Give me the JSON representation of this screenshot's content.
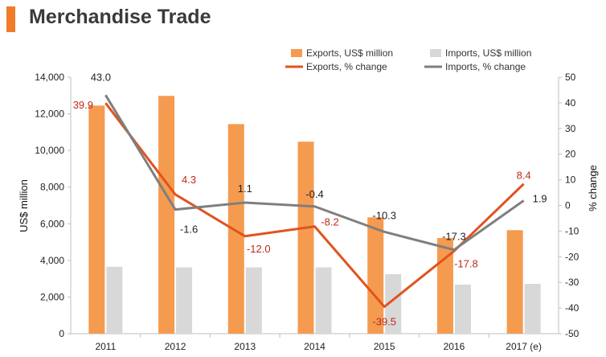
{
  "header": {
    "title": "Merchandise Trade",
    "accent_color": "#f07c2a"
  },
  "chart_data": {
    "type": "bar",
    "categories": [
      "2011",
      "2012",
      "2013",
      "2014",
      "2015",
      "2016",
      "2017 (e)"
    ],
    "left_axis": {
      "label": "US$ million",
      "min": 0,
      "max": 14000,
      "ticks": [
        "0",
        "2,000",
        "4,000",
        "6,000",
        "8,000",
        "10,000",
        "12,000",
        "14,000"
      ]
    },
    "right_axis": {
      "label": "% change",
      "min": -50,
      "max": 50,
      "ticks": [
        "-50",
        "-40",
        "-30",
        "-20",
        "-10",
        "0",
        "10",
        "20",
        "30",
        "40",
        "50"
      ]
    },
    "bar_series": [
      {
        "name": "Exports, US$ million",
        "color": "#f59b4f",
        "axis": "left",
        "values": [
          12450,
          12980,
          11440,
          10480,
          6350,
          5220,
          5650
        ]
      },
      {
        "name": "Imports, US$ million",
        "color": "#d8d8d8",
        "axis": "left",
        "values": [
          3650,
          3620,
          3620,
          3620,
          3250,
          2680,
          2720
        ]
      }
    ],
    "line_series": [
      {
        "name": "Exports, % change",
        "color": "#e0531f",
        "label_color": "#c0281e",
        "axis": "right",
        "values": [
          39.9,
          4.3,
          -12.0,
          -8.2,
          -39.5,
          -17.8,
          8.4
        ],
        "labels": [
          "39.9",
          "4.3",
          "-12.0",
          "-8.2",
          "-39.5",
          "-17.8",
          "8.4"
        ]
      },
      {
        "name": "Imports, % change",
        "color": "#7f7f7f",
        "label_color": "#222222",
        "axis": "right",
        "values": [
          43.0,
          -1.6,
          1.1,
          -0.4,
          -10.3,
          -17.3,
          1.9
        ],
        "labels": [
          "43.0",
          "-1.6",
          "1.1",
          "-0.4",
          "-10.3",
          "-17.3",
          "1.9"
        ]
      }
    ],
    "legend_position": "top-right",
    "grid": false
  }
}
